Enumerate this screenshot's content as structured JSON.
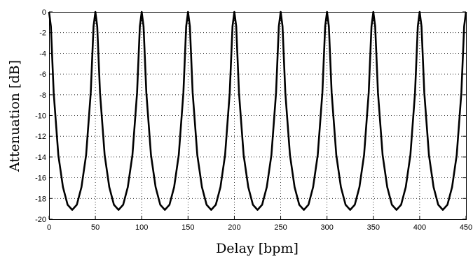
{
  "chart_data": {
    "type": "line",
    "title": "",
    "xlabel": "Delay [bpm]",
    "ylabel": "Attenuation [dB]",
    "xlim": [
      0,
      450
    ],
    "ylim": [
      -20,
      0
    ],
    "xticks": [
      0,
      50,
      100,
      150,
      200,
      250,
      300,
      350,
      400,
      450
    ],
    "yticks": [
      0,
      -2,
      -4,
      -6,
      -8,
      -10,
      -12,
      -14,
      -16,
      -18,
      -20
    ],
    "xtick_labels": [
      "0",
      "50",
      "100",
      "150",
      "200",
      "250",
      "300",
      "350",
      "400",
      "450"
    ],
    "ytick_labels": [
      "0",
      "-2",
      "-4",
      "-6",
      "-8",
      "-10",
      "-12",
      "-14",
      "-16",
      "-18",
      "-20"
    ],
    "grid": true,
    "series": [
      {
        "color": "#000000",
        "x": [
          0,
          2,
          5,
          10,
          15,
          20,
          25,
          30,
          35,
          40,
          45,
          48,
          50,
          52,
          55,
          60,
          65,
          70,
          75,
          80,
          85,
          90,
          95,
          98,
          100,
          102,
          105,
          110,
          115,
          120,
          125,
          130,
          135,
          140,
          145,
          148,
          150,
          152,
          155,
          160,
          165,
          170,
          175,
          180,
          185,
          190,
          195,
          198,
          200,
          202,
          205,
          210,
          215,
          220,
          225,
          230,
          235,
          240,
          245,
          248,
          250,
          252,
          255,
          260,
          265,
          270,
          275,
          280,
          285,
          290,
          295,
          298,
          300,
          302,
          305,
          310,
          315,
          320,
          325,
          330,
          335,
          340,
          345,
          348,
          350,
          352,
          355,
          360,
          365,
          370,
          375,
          380,
          385,
          390,
          395,
          398,
          400,
          402,
          405,
          410,
          415,
          420,
          425,
          430,
          435,
          440,
          445,
          448,
          450
        ],
        "y": [
          0,
          -1.4,
          -7.8,
          -13.8,
          -16.9,
          -18.6,
          -19.1,
          -18.6,
          -16.9,
          -13.8,
          -7.8,
          -1.4,
          0,
          -1.4,
          -7.8,
          -13.8,
          -16.9,
          -18.6,
          -19.1,
          -18.6,
          -16.9,
          -13.8,
          -7.8,
          -1.4,
          0,
          -1.4,
          -7.8,
          -13.8,
          -16.9,
          -18.6,
          -19.1,
          -18.6,
          -16.9,
          -13.8,
          -7.8,
          -1.4,
          0,
          -1.4,
          -7.8,
          -13.8,
          -16.9,
          -18.6,
          -19.1,
          -18.6,
          -16.9,
          -13.8,
          -7.8,
          -1.4,
          0,
          -1.4,
          -7.8,
          -13.8,
          -16.9,
          -18.6,
          -19.1,
          -18.6,
          -16.9,
          -13.8,
          -7.8,
          -1.4,
          0,
          -1.4,
          -7.8,
          -13.8,
          -16.9,
          -18.6,
          -19.1,
          -18.6,
          -16.9,
          -13.8,
          -7.8,
          -1.4,
          0,
          -1.4,
          -7.8,
          -13.8,
          -16.9,
          -18.6,
          -19.1,
          -18.6,
          -16.9,
          -13.8,
          -7.8,
          -1.4,
          0,
          -1.4,
          -7.8,
          -13.8,
          -16.9,
          -18.6,
          -19.1,
          -18.6,
          -16.9,
          -13.8,
          -7.8,
          -1.4,
          0,
          -1.4,
          -7.8,
          -13.8,
          -16.9,
          -18.6,
          -19.1,
          -18.6,
          -16.9,
          -13.8,
          -7.8,
          -1.4,
          0
        ]
      }
    ]
  }
}
